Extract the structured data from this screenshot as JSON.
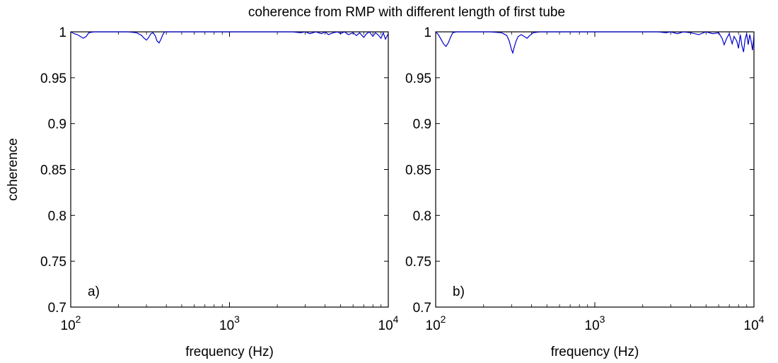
{
  "figure": {
    "title": "coherence from RMP with different length of first tube"
  },
  "chart_data": [
    {
      "type": "line",
      "panel_label": "a)",
      "title": "",
      "xlabel": "frequency (Hz)",
      "ylabel": "coherence",
      "x_scale": "log",
      "xlim": [
        100,
        10000
      ],
      "ylim": [
        0.7,
        1.0
      ],
      "x_ticks": [
        {
          "base": "10",
          "exp": "2"
        },
        {
          "base": "10",
          "exp": "3"
        },
        {
          "base": "10",
          "exp": "4"
        }
      ],
      "y_ticks": [
        "0.7",
        "0.75",
        "0.8",
        "0.85",
        "0.9",
        "0.95",
        "1"
      ],
      "grid": false,
      "line_color": "#0000cc",
      "series": [
        {
          "x": [
            100,
            105,
            110,
            115,
            120,
            125,
            130,
            140,
            150,
            160,
            180,
            200,
            230,
            260,
            280,
            290,
            300,
            310,
            320,
            330,
            340,
            350,
            360,
            370,
            380,
            390,
            400,
            450,
            500,
            600,
            700,
            800,
            1000,
            1200,
            1500,
            2000,
            2500,
            2800,
            3000,
            3200,
            3500,
            3800,
            4000,
            4200,
            4500,
            4800,
            5000,
            5300,
            5600,
            6000,
            6300,
            6600,
            7000,
            7300,
            7600,
            8000,
            8300,
            8600,
            9000,
            9300,
            9600,
            10000
          ],
          "y": [
            1.0,
            0.998,
            0.997,
            0.995,
            0.993,
            0.995,
            0.999,
            1.0,
            1.0,
            1.0,
            1.0,
            1.0,
            1.0,
            0.999,
            0.996,
            0.993,
            0.991,
            0.994,
            0.998,
            0.999,
            0.996,
            0.99,
            0.988,
            0.992,
            0.997,
            1.0,
            1.0,
            1.0,
            1.0,
            1.0,
            1.0,
            1.0,
            1.0,
            1.0,
            1.0,
            1.0,
            1.0,
            0.999,
            1.0,
            0.998,
            1.0,
            0.998,
            1.0,
            0.997,
            0.999,
            1.0,
            0.998,
            1.0,
            0.997,
            0.999,
            0.996,
            0.999,
            0.994,
            0.998,
            1.0,
            0.995,
            0.999,
            0.997,
            0.993,
            0.999,
            0.992,
            0.998
          ]
        }
      ]
    },
    {
      "type": "line",
      "panel_label": "b)",
      "title": "",
      "xlabel": "frequency (Hz)",
      "ylabel": "",
      "x_scale": "log",
      "xlim": [
        100,
        10000
      ],
      "ylim": [
        0.7,
        1.0
      ],
      "x_ticks": [
        {
          "base": "10",
          "exp": "2"
        },
        {
          "base": "10",
          "exp": "3"
        },
        {
          "base": "10",
          "exp": "4"
        }
      ],
      "y_ticks": [
        "0.7",
        "0.75",
        "0.8",
        "0.85",
        "0.9",
        "0.95",
        "1"
      ],
      "grid": false,
      "line_color": "#0000cc",
      "series": [
        {
          "x": [
            100,
            104,
            108,
            112,
            116,
            120,
            124,
            128,
            135,
            150,
            180,
            220,
            260,
            280,
            290,
            300,
            305,
            310,
            320,
            330,
            345,
            360,
            375,
            390,
            410,
            450,
            500,
            600,
            800,
            1000,
            1500,
            2000,
            2500,
            2800,
            3000,
            3300,
            3600,
            4000,
            4500,
            5000,
            5500,
            6000,
            6300,
            6500,
            6700,
            7000,
            7300,
            7500,
            7800,
            8000,
            8200,
            8400,
            8600,
            8800,
            9000,
            9200,
            9400,
            9600,
            9800,
            10000
          ],
          "y": [
            1.0,
            0.997,
            0.992,
            0.987,
            0.984,
            0.988,
            0.994,
            0.999,
            1.0,
            1.0,
            1.0,
            1.0,
            0.999,
            0.996,
            0.99,
            0.98,
            0.977,
            0.982,
            0.99,
            0.995,
            0.997,
            0.995,
            0.993,
            0.996,
            0.999,
            1.0,
            1.0,
            1.0,
            1.0,
            1.0,
            1.0,
            1.0,
            1.0,
            0.999,
            1.0,
            0.998,
            1.0,
            0.999,
            0.997,
            1.0,
            0.998,
            0.999,
            0.993,
            0.986,
            0.992,
            0.998,
            0.987,
            0.995,
            0.99,
            0.982,
            0.997,
            0.985,
            0.978,
            0.992,
            0.998,
            0.986,
            0.997,
            0.99,
            0.98,
            0.996
          ]
        }
      ]
    }
  ]
}
